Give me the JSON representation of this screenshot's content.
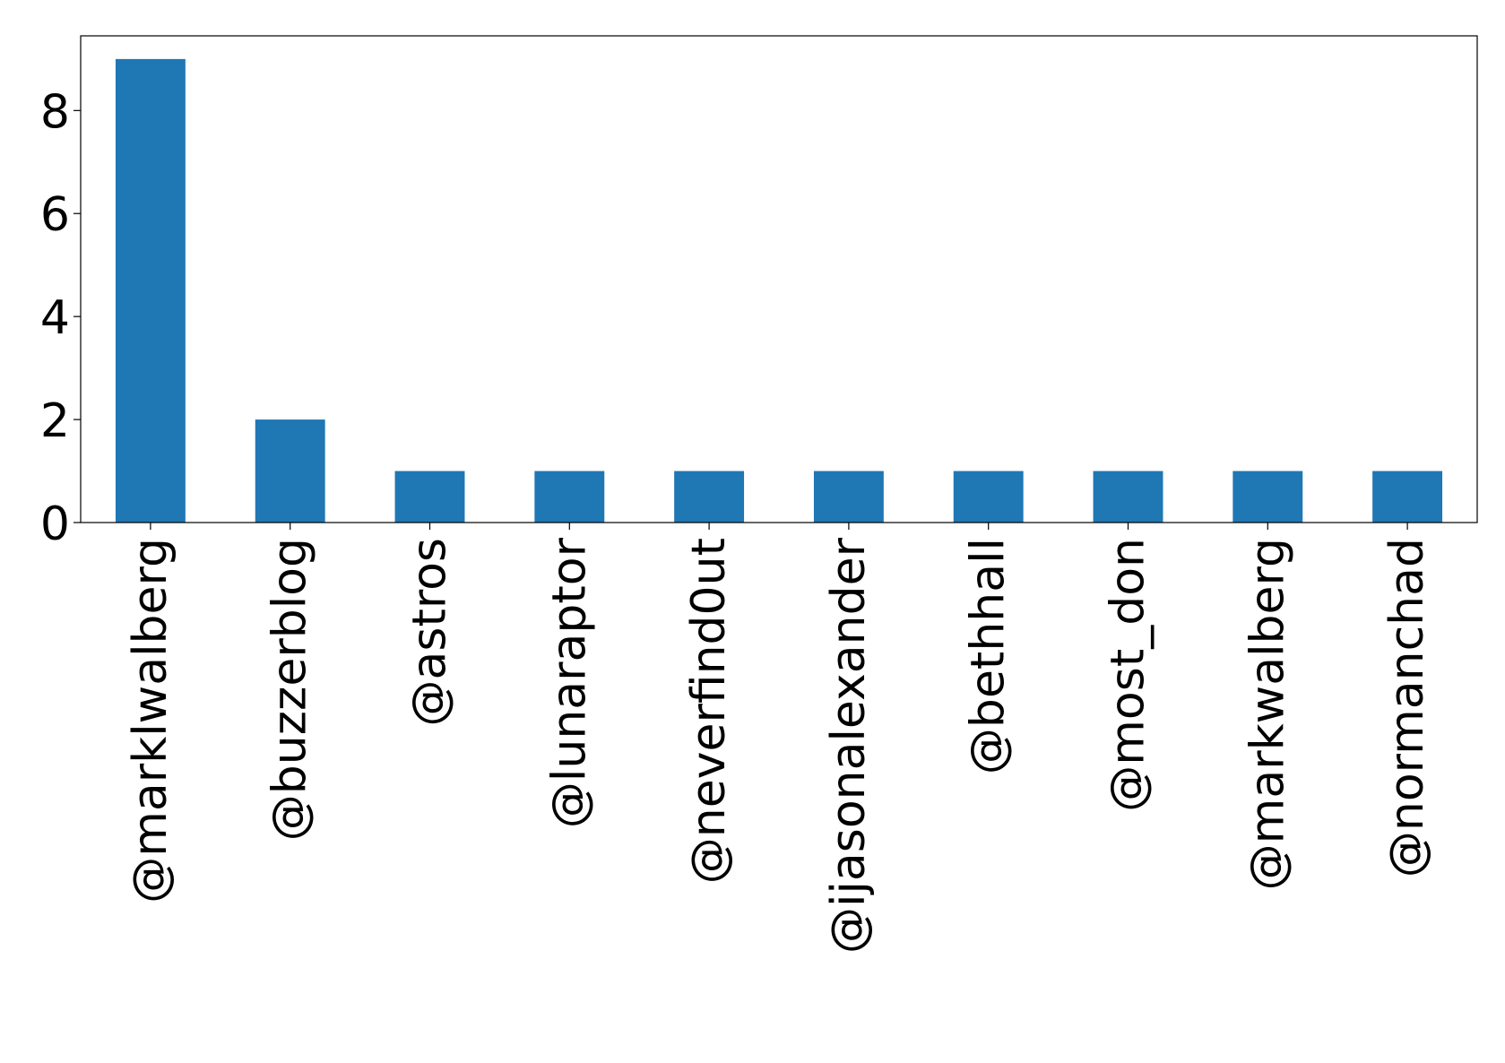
{
  "chart_data": {
    "type": "bar",
    "title": "",
    "xlabel": "",
    "ylabel": "",
    "categories": [
      "@marklwalberg",
      "@buzzerblog",
      "@astros",
      "@lunaraptor",
      "@neverfind0ut",
      "@ijasonalexander",
      "@bethhall",
      "@most_don",
      "@markwalberg",
      "@normanchad"
    ],
    "values": [
      9,
      2,
      1,
      1,
      1,
      1,
      1,
      1,
      1,
      1
    ],
    "ylim": [
      0,
      9.45
    ],
    "yticks": [
      0,
      2,
      4,
      6,
      8
    ],
    "bar_color": "#1f77b4",
    "grid": false,
    "legend": "none"
  }
}
